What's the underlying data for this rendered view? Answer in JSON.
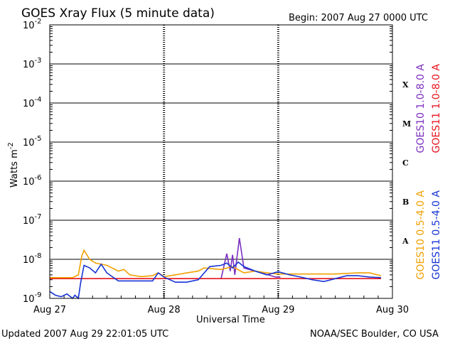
{
  "header": {
    "title": "GOES Xray Flux (5 minute data)",
    "begin": "Begin:  2007 Aug 27 0000 UTC"
  },
  "footer": {
    "updated": "Updated 2007 Aug 29 22:01:05 UTC",
    "credit": "NOAA/SEC Boulder, CO USA"
  },
  "colors": {
    "goes10_long": "#7b2fbf",
    "goes11_long": "#e8141e",
    "goes10_short": "#f0a000",
    "goes11_short": "#1733d4"
  },
  "chart_data": {
    "type": "line",
    "xlabel": "Universal Time",
    "ylabel": "Watts m",
    "ylabel_exponent": "-2",
    "y_scale": "log",
    "ylim": [
      1e-09,
      0.01
    ],
    "xlim": [
      "2007-08-27",
      "2007-08-30"
    ],
    "x_ticks": [
      "Aug 27",
      "Aug 28",
      "Aug 29",
      "Aug 30"
    ],
    "y_ticks": [
      {
        "base": "10",
        "exp": "-2",
        "value": 0.01
      },
      {
        "base": "10",
        "exp": "-3",
        "value": 0.001
      },
      {
        "base": "10",
        "exp": "-4",
        "value": 0.0001
      },
      {
        "base": "10",
        "exp": "-5",
        "value": 1e-05
      },
      {
        "base": "10",
        "exp": "-6",
        "value": 1e-06
      },
      {
        "base": "10",
        "exp": "-7",
        "value": 1e-07
      },
      {
        "base": "10",
        "exp": "-8",
        "value": 1e-08
      },
      {
        "base": "10",
        "exp": "-9",
        "value": 1e-09
      }
    ],
    "flare_classes": [
      {
        "label": "X",
        "value": 0.0003
      },
      {
        "label": "M",
        "value": 3e-05
      },
      {
        "label": "C",
        "value": 3e-06
      },
      {
        "label": "B",
        "value": 3e-07
      },
      {
        "label": "A",
        "value": 3e-08
      }
    ],
    "grid": "horizontal decades, dashed at day boundaries",
    "legend": "right, vertical",
    "series": [
      {
        "name": "GOES10 1.0-8.0 A",
        "color_key": "goes10_long",
        "x": [
          1.5,
          1.55,
          1.58,
          1.6,
          1.62,
          1.66,
          1.7,
          1.98,
          2.0,
          2.02
        ],
        "y": [
          3.2e-09,
          1.4e-08,
          5e-09,
          1.3e-08,
          4e-09,
          3.5e-08,
          6e-09,
          3.5e-09,
          3.5e-09,
          3.5e-09
        ]
      },
      {
        "name": "GOES11 1.0-8.0 A",
        "color_key": "goes11_long",
        "x": [
          0.0,
          0.2,
          0.4,
          0.6,
          0.8,
          1.0,
          1.2,
          1.4,
          1.6,
          1.8,
          2.0,
          2.2,
          2.4,
          2.6,
          2.8,
          2.9
        ],
        "y": [
          3.2e-09,
          3.2e-09,
          3.2e-09,
          3.2e-09,
          3.2e-09,
          3.2e-09,
          3.2e-09,
          3.2e-09,
          3.2e-09,
          3.2e-09,
          3.2e-09,
          3.2e-09,
          3.2e-09,
          3.2e-09,
          3.2e-09,
          3.2e-09
        ]
      },
      {
        "name": "GOES10 0.5-4.0 A",
        "color_key": "goes10_short",
        "x": [
          0.0,
          0.2,
          0.25,
          0.28,
          0.3,
          0.35,
          0.4,
          0.5,
          0.6,
          0.65,
          0.7,
          0.8,
          0.9,
          0.95,
          1.0,
          1.1,
          1.2,
          1.3,
          1.35,
          1.5,
          1.6,
          1.7,
          1.8,
          1.9,
          2.0,
          2.1,
          2.3,
          2.5,
          2.7,
          2.8,
          2.9
        ],
        "y": [
          3.4e-09,
          3.4e-09,
          4e-09,
          1.2e-08,
          1.7e-08,
          1e-08,
          8e-09,
          7e-09,
          5e-09,
          5.5e-09,
          4e-09,
          3.6e-09,
          3.8e-09,
          4.5e-09,
          3.6e-09,
          4e-09,
          4.5e-09,
          5e-09,
          6e-09,
          5.5e-09,
          6.5e-09,
          4.5e-09,
          5e-09,
          4.5e-09,
          4.2e-09,
          4.2e-09,
          4.2e-09,
          4.2e-09,
          4.5e-09,
          4.5e-09,
          3.8e-09
        ]
      },
      {
        "name": "GOES11 0.5-4.0 A",
        "color_key": "goes11_short",
        "x": [
          0.0,
          0.05,
          0.1,
          0.15,
          0.2,
          0.22,
          0.25,
          0.27,
          0.3,
          0.35,
          0.4,
          0.45,
          0.5,
          0.6,
          0.7,
          0.8,
          0.9,
          0.95,
          1.0,
          1.1,
          1.2,
          1.3,
          1.4,
          1.5,
          1.55,
          1.6,
          1.65,
          1.7,
          1.8,
          1.9,
          2.0,
          2.1,
          2.2,
          2.3,
          2.4,
          2.5,
          2.6,
          2.7,
          2.8,
          2.9
        ],
        "y": [
          1.5e-09,
          1.2e-09,
          1.1e-09,
          1.3e-09,
          1e-09,
          1.2e-09,
          1e-09,
          2.5e-09,
          7e-09,
          6e-09,
          4.5e-09,
          7.5e-09,
          4.5e-09,
          2.8e-09,
          2.8e-09,
          2.8e-09,
          2.8e-09,
          4.5e-09,
          3.5e-09,
          2.6e-09,
          2.6e-09,
          3e-09,
          6.5e-09,
          7e-09,
          8e-09,
          6e-09,
          8.5e-09,
          6.5e-09,
          5e-09,
          4e-09,
          4.8e-09,
          4e-09,
          3.5e-09,
          3e-09,
          2.7e-09,
          3.2e-09,
          3.8e-09,
          3.8e-09,
          3.5e-09,
          3.4e-09
        ]
      }
    ]
  }
}
